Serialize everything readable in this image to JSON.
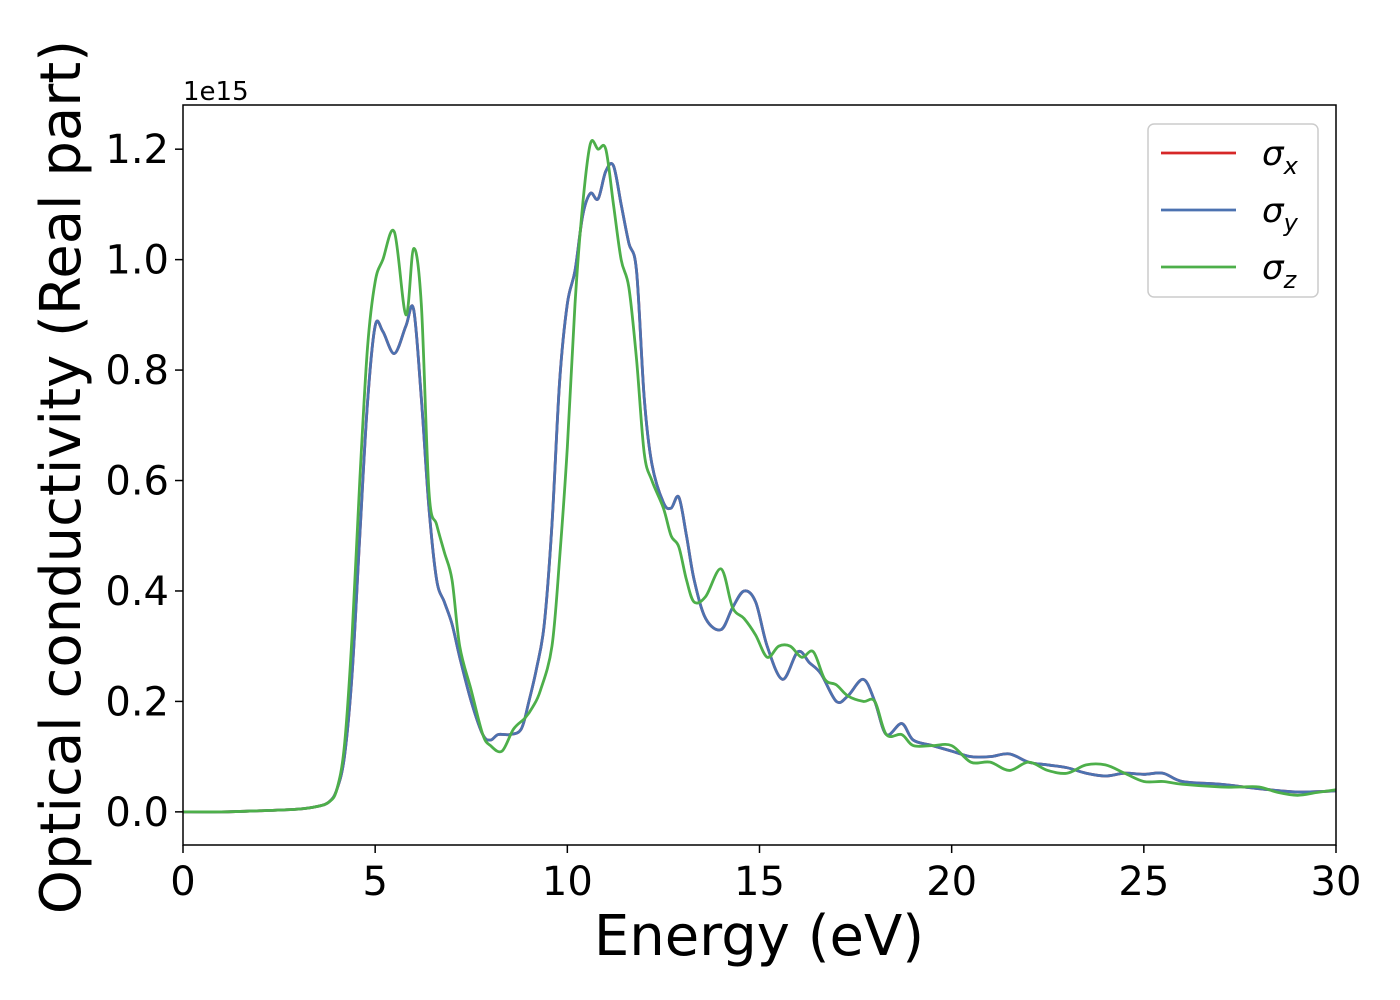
{
  "chart_data": {
    "type": "line",
    "xlabel": "Energy (eV)",
    "ylabel": "Optical conductivity (Real part)",
    "offset_text": "1e15",
    "xlim": [
      0,
      30
    ],
    "ylim": [
      -0.06,
      1.28
    ],
    "x_ticks": [
      0,
      5,
      10,
      15,
      20,
      25,
      30
    ],
    "x_tick_labels": [
      "0",
      "5",
      "10",
      "15",
      "20",
      "25",
      "30"
    ],
    "y_ticks": [
      0.0,
      0.2,
      0.4,
      0.6,
      0.8,
      1.0,
      1.2
    ],
    "y_tick_labels": [
      "0.0",
      "0.2",
      "0.4",
      "0.6",
      "0.8",
      "1.0",
      "1.2"
    ],
    "grid": false,
    "legend_position": "top-right",
    "series": [
      {
        "name": "σx",
        "legend_symbol": "σ",
        "legend_subscript": "x",
        "color": "#d62728",
        "x": [
          0,
          1,
          2,
          3,
          3.5,
          3.8,
          4.0,
          4.2,
          4.4,
          4.6,
          4.8,
          5.0,
          5.2,
          5.5,
          5.8,
          6.0,
          6.2,
          6.4,
          6.6,
          6.8,
          7.0,
          7.2,
          7.5,
          7.8,
          8.0,
          8.2,
          8.5,
          8.8,
          9.0,
          9.2,
          9.4,
          9.6,
          9.8,
          10.0,
          10.2,
          10.4,
          10.6,
          10.8,
          11.0,
          11.2,
          11.4,
          11.6,
          11.8,
          12.0,
          12.2,
          12.5,
          12.7,
          12.9,
          13.1,
          13.3,
          13.6,
          14.0,
          14.3,
          14.6,
          14.9,
          15.2,
          15.6,
          16.0,
          16.3,
          16.6,
          17.0,
          17.3,
          17.7,
          18.0,
          18.3,
          18.7,
          19.0,
          19.5,
          20.0,
          20.5,
          21.0,
          21.5,
          22.0,
          22.5,
          23.0,
          23.5,
          24.0,
          24.5,
          25.0,
          25.5,
          26.0,
          27.0,
          28.0,
          29.0,
          30.0
        ],
        "values": [
          0.0,
          0.0,
          0.002,
          0.005,
          0.01,
          0.018,
          0.04,
          0.1,
          0.25,
          0.5,
          0.74,
          0.88,
          0.87,
          0.83,
          0.88,
          0.91,
          0.75,
          0.55,
          0.42,
          0.38,
          0.34,
          0.28,
          0.2,
          0.14,
          0.13,
          0.14,
          0.14,
          0.15,
          0.2,
          0.26,
          0.34,
          0.52,
          0.78,
          0.92,
          0.98,
          1.08,
          1.12,
          1.11,
          1.16,
          1.17,
          1.1,
          1.03,
          0.98,
          0.75,
          0.63,
          0.56,
          0.55,
          0.57,
          0.5,
          0.42,
          0.35,
          0.33,
          0.37,
          0.4,
          0.38,
          0.3,
          0.24,
          0.29,
          0.27,
          0.25,
          0.2,
          0.21,
          0.24,
          0.2,
          0.14,
          0.16,
          0.13,
          0.12,
          0.11,
          0.1,
          0.1,
          0.105,
          0.09,
          0.085,
          0.08,
          0.07,
          0.065,
          0.07,
          0.068,
          0.07,
          0.055,
          0.05,
          0.042,
          0.036,
          0.038
        ]
      },
      {
        "name": "σy",
        "legend_symbol": "σ",
        "legend_subscript": "y",
        "color": "#4c72b0",
        "x": [
          0,
          1,
          2,
          3,
          3.5,
          3.8,
          4.0,
          4.2,
          4.4,
          4.6,
          4.8,
          5.0,
          5.2,
          5.5,
          5.8,
          6.0,
          6.2,
          6.4,
          6.6,
          6.8,
          7.0,
          7.2,
          7.5,
          7.8,
          8.0,
          8.2,
          8.5,
          8.8,
          9.0,
          9.2,
          9.4,
          9.6,
          9.8,
          10.0,
          10.2,
          10.4,
          10.6,
          10.8,
          11.0,
          11.2,
          11.4,
          11.6,
          11.8,
          12.0,
          12.2,
          12.5,
          12.7,
          12.9,
          13.1,
          13.3,
          13.6,
          14.0,
          14.3,
          14.6,
          14.9,
          15.2,
          15.6,
          16.0,
          16.3,
          16.6,
          17.0,
          17.3,
          17.7,
          18.0,
          18.3,
          18.7,
          19.0,
          19.5,
          20.0,
          20.5,
          21.0,
          21.5,
          22.0,
          22.5,
          23.0,
          23.5,
          24.0,
          24.5,
          25.0,
          25.5,
          26.0,
          27.0,
          28.0,
          29.0,
          30.0
        ],
        "values": [
          0.0,
          0.0,
          0.002,
          0.005,
          0.01,
          0.018,
          0.04,
          0.1,
          0.25,
          0.5,
          0.74,
          0.88,
          0.87,
          0.83,
          0.88,
          0.91,
          0.75,
          0.55,
          0.42,
          0.38,
          0.34,
          0.28,
          0.2,
          0.14,
          0.13,
          0.14,
          0.14,
          0.15,
          0.2,
          0.26,
          0.34,
          0.52,
          0.78,
          0.92,
          0.98,
          1.08,
          1.12,
          1.11,
          1.16,
          1.17,
          1.1,
          1.03,
          0.98,
          0.75,
          0.63,
          0.56,
          0.55,
          0.57,
          0.5,
          0.42,
          0.35,
          0.33,
          0.37,
          0.4,
          0.38,
          0.3,
          0.24,
          0.29,
          0.27,
          0.25,
          0.2,
          0.21,
          0.24,
          0.2,
          0.14,
          0.16,
          0.13,
          0.12,
          0.11,
          0.1,
          0.1,
          0.105,
          0.09,
          0.085,
          0.08,
          0.07,
          0.065,
          0.07,
          0.068,
          0.07,
          0.055,
          0.05,
          0.042,
          0.036,
          0.038
        ]
      },
      {
        "name": "σz",
        "legend_symbol": "σ",
        "legend_subscript": "z",
        "color": "#4daf4a",
        "x": [
          0,
          1,
          2,
          3,
          3.5,
          3.8,
          4.0,
          4.2,
          4.4,
          4.6,
          4.8,
          5.0,
          5.2,
          5.5,
          5.8,
          6.0,
          6.2,
          6.4,
          6.6,
          6.8,
          7.0,
          7.2,
          7.5,
          7.8,
          8.0,
          8.3,
          8.6,
          8.9,
          9.1,
          9.3,
          9.6,
          9.8,
          10.0,
          10.2,
          10.4,
          10.6,
          10.8,
          11.0,
          11.2,
          11.4,
          11.6,
          11.8,
          12.0,
          12.2,
          12.5,
          12.7,
          12.9,
          13.1,
          13.3,
          13.6,
          14.0,
          14.3,
          14.6,
          14.9,
          15.2,
          15.5,
          15.8,
          16.1,
          16.4,
          16.7,
          17.0,
          17.3,
          17.7,
          18.0,
          18.3,
          18.7,
          19.0,
          19.5,
          20.0,
          20.5,
          21.0,
          21.5,
          22.0,
          22.5,
          23.0,
          23.5,
          24.0,
          24.5,
          25.0,
          25.5,
          26.0,
          27.0,
          27.5,
          28.0,
          28.5,
          29.0,
          29.5,
          30.0
        ],
        "values": [
          0.0,
          0.0,
          0.002,
          0.005,
          0.01,
          0.018,
          0.04,
          0.12,
          0.32,
          0.6,
          0.84,
          0.96,
          1.0,
          1.05,
          0.9,
          1.02,
          0.92,
          0.58,
          0.52,
          0.47,
          0.42,
          0.3,
          0.22,
          0.14,
          0.12,
          0.11,
          0.15,
          0.17,
          0.19,
          0.22,
          0.3,
          0.46,
          0.66,
          0.92,
          1.1,
          1.21,
          1.2,
          1.2,
          1.1,
          1.0,
          0.95,
          0.82,
          0.65,
          0.6,
          0.55,
          0.5,
          0.48,
          0.42,
          0.38,
          0.39,
          0.44,
          0.37,
          0.35,
          0.32,
          0.28,
          0.3,
          0.3,
          0.28,
          0.29,
          0.24,
          0.23,
          0.21,
          0.2,
          0.2,
          0.14,
          0.14,
          0.12,
          0.12,
          0.12,
          0.09,
          0.09,
          0.075,
          0.09,
          0.075,
          0.07,
          0.085,
          0.085,
          0.07,
          0.055,
          0.055,
          0.05,
          0.045,
          0.045,
          0.045,
          0.035,
          0.03,
          0.035,
          0.04
        ]
      }
    ]
  }
}
